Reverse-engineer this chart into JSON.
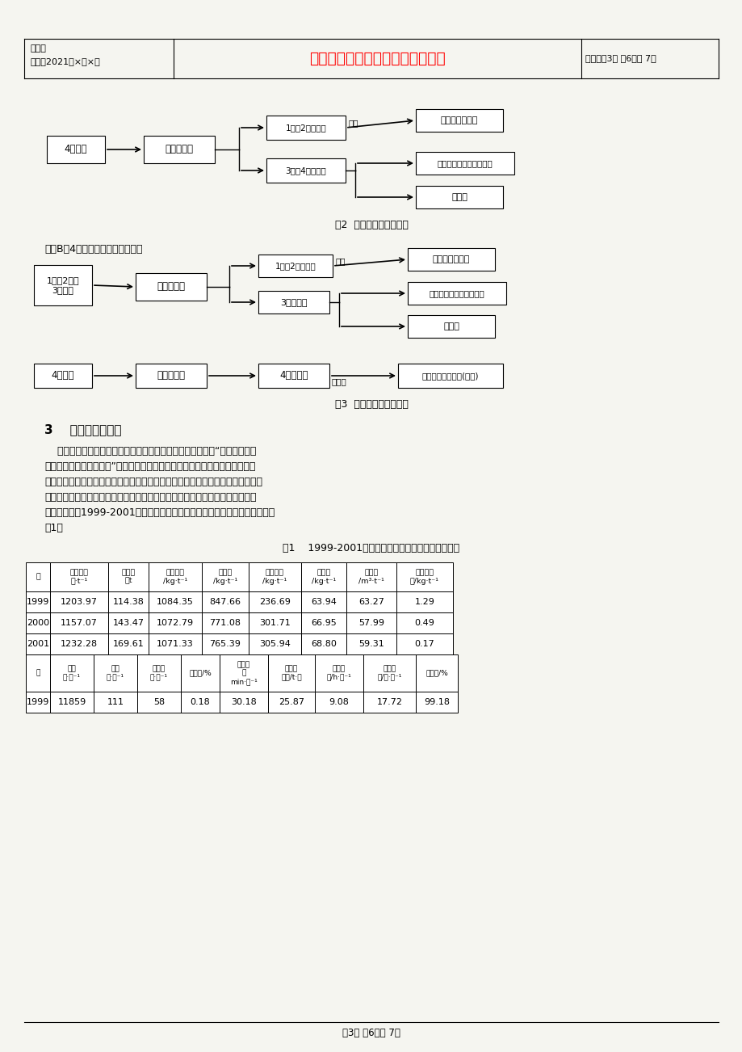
{
  "page_bg": "#f5f5f0",
  "header_bianhao": "编号：",
  "header_shijian": "时间：2021年×月×日",
  "header_title_red": "书山有路勤为径，学海无涯苦作舟",
  "header_page_info": "页码：第3页 兲6页共 7页",
  "fig2_caption": "图2  生产工艺流程示意图",
  "fig3_caption": "图3  生产工艺流程示意图",
  "fangan_text": "方案B（4号转炉装入量增加时）：",
  "section3_title": "3    取得的主要成效",
  "section3_lines": [
    "    三钔集团公司坚持以市场为导向，积极探索投资策略，确定“以适度扩大总",
    "量，实现规模效益为中心”，对炼钔系统进行投资改造和生产结构的调整，已呢",
    "现出明显的投资效益。转炉炼钔多项技术经济指标取得明显进步，转炉利用系数、",
    "炉龄、钔鐵料耗、铁水耗及连铸机作业率、连浇时间、连浇炉数等指标名列同类",
    "型企业前茅。1999-2001年炼钔转炉连铸生产主要技术经济指标完成情况见表",
    "（1）"
  ],
  "table_title": "表1    1999-2001年炼钔厂转炉连铸主要技术经济指标",
  "th1_0": "年",
  "th1_1": "实际成本\n元·t⁻¹",
  "th1_2": "钔产量\n万t",
  "th1_3": "钔鐵料耗\n/kg·t⁻¹",
  "th1_4": "铁水耗\n/kg·t⁻¹",
  "th1_5": "废钔鐵耗\n/kg·t⁻¹",
  "th1_6": "石灰耗\n/kg·t⁻¹",
  "th1_7": "氧气耗\n/m³·t⁻¹",
  "th1_8": "补炉料消\n耗/kg·t⁻¹",
  "table_data1": [
    [
      "1999",
      "1203.97",
      "114.38",
      "1084.35",
      "847.66",
      "236.69",
      "63.94",
      "63.27",
      "1.29"
    ],
    [
      "2000",
      "1157.07",
      "143.47",
      "1072.79",
      "771.08",
      "301.71",
      "66.95",
      "57.99",
      "0.49"
    ],
    [
      "2001",
      "1232.28",
      "169.61",
      "1071.33",
      "765.39",
      "305.94",
      "68.80",
      "59.31",
      "0.17"
    ]
  ],
  "th2_0": "年",
  "th2_1": "炉龄\n炉·次⁻¹",
  "th2_2": "枪龄\n炉·次⁻¹",
  "th2_3": "钔包龄\n炉·次⁻¹",
  "th2_4": "回炉率/%",
  "th2_5": "冶炼周\n期\nmin·炉⁻¹",
  "th2_6": "平均炉\n产量/t·炉",
  "th2_7": "连浇时\n间/h·组⁻¹",
  "th2_8": "连浇炉\n数/炉·组⁻¹",
  "th2_9": "连成率/%",
  "table_data2": [
    [
      "1999",
      "11859",
      "111",
      "58",
      "0.18",
      "30.18",
      "25.87",
      "9.08",
      "17.72",
      "99.18"
    ]
  ],
  "footer": "第3页 兲6页共 7页"
}
